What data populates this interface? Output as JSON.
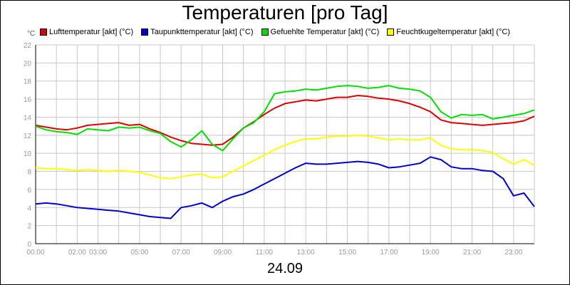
{
  "chart_data": {
    "type": "line",
    "title": "Temperaturen [pro Tag]",
    "xlabel": "24.09",
    "ylabel": "°C",
    "ylim": [
      0,
      22
    ],
    "xlim": [
      0,
      24
    ],
    "grid": true,
    "legend_position": "top",
    "yticks": [
      "0",
      "2",
      "4",
      "6",
      "8",
      "10",
      "12",
      "14",
      "16",
      "18",
      "20",
      "22"
    ],
    "xticks": [
      {
        "h": 0,
        "label": "00:00"
      },
      {
        "h": 2,
        "label": "02:00"
      },
      {
        "h": 3,
        "label": "03:00"
      },
      {
        "h": 5,
        "label": "05:00"
      },
      {
        "h": 7,
        "label": "07:00"
      },
      {
        "h": 9,
        "label": "09:00"
      },
      {
        "h": 11,
        "label": "11:00"
      },
      {
        "h": 13,
        "label": "13:00"
      },
      {
        "h": 15,
        "label": "15:00"
      },
      {
        "h": 17,
        "label": "17:00"
      },
      {
        "h": 19,
        "label": "19:00"
      },
      {
        "h": 21,
        "label": "21:00"
      },
      {
        "h": 23,
        "label": "23:00"
      }
    ],
    "x": [
      0,
      0.5,
      1,
      1.5,
      2,
      2.5,
      3,
      3.5,
      4,
      4.5,
      5,
      5.5,
      6,
      6.5,
      7,
      7.5,
      8,
      8.5,
      9,
      9.5,
      10,
      10.5,
      11,
      11.5,
      12,
      12.5,
      13,
      13.5,
      14,
      14.5,
      15,
      15.5,
      16,
      16.5,
      17,
      17.5,
      18,
      18.5,
      19,
      19.5,
      20,
      20.5,
      21,
      21.5,
      22,
      22.5,
      23,
      23.5,
      24
    ],
    "series": [
      {
        "name": "Lufttemperatur [akt] (°C)",
        "color": "#e00000",
        "values": [
          13.1,
          12.9,
          12.7,
          12.6,
          12.8,
          13.1,
          13.2,
          13.3,
          13.4,
          13.1,
          13.2,
          12.7,
          12.3,
          11.8,
          11.4,
          11.1,
          11.0,
          10.9,
          11.0,
          11.8,
          12.8,
          13.5,
          14.3,
          15.0,
          15.5,
          15.7,
          15.9,
          15.8,
          16.0,
          16.2,
          16.2,
          16.4,
          16.3,
          16.1,
          16.0,
          15.8,
          15.5,
          15.1,
          14.6,
          13.7,
          13.4,
          13.3,
          13.2,
          13.1,
          13.2,
          13.3,
          13.4,
          13.6,
          14.1
        ]
      },
      {
        "name": "Taupunkttemperatur [akt] (°C)",
        "color": "#0000d0",
        "values": [
          4.4,
          4.5,
          4.4,
          4.2,
          4.0,
          3.9,
          3.8,
          3.7,
          3.6,
          3.4,
          3.2,
          3.0,
          2.9,
          2.8,
          4.0,
          4.2,
          4.5,
          4.0,
          4.7,
          5.2,
          5.5,
          6.0,
          6.6,
          7.2,
          7.8,
          8.4,
          8.9,
          8.8,
          8.8,
          8.9,
          9.0,
          9.1,
          9.0,
          8.8,
          8.4,
          8.5,
          8.7,
          8.9,
          9.6,
          9.3,
          8.5,
          8.3,
          8.3,
          8.1,
          8.0,
          7.2,
          5.3,
          5.6,
          4.1
        ]
      },
      {
        "name": "Gefuehlte Temperatur [akt] (°C)",
        "color": "#00e000",
        "values": [
          13.0,
          12.6,
          12.4,
          12.3,
          12.1,
          12.7,
          12.6,
          12.5,
          12.9,
          12.8,
          12.9,
          12.5,
          12.2,
          11.3,
          10.7,
          11.5,
          12.5,
          11.0,
          10.3,
          11.6,
          12.8,
          13.4,
          14.6,
          16.6,
          16.8,
          16.9,
          17.1,
          17.0,
          17.2,
          17.4,
          17.5,
          17.4,
          17.2,
          17.3,
          17.5,
          17.2,
          17.1,
          16.9,
          16.2,
          14.6,
          13.9,
          14.3,
          14.2,
          14.3,
          13.8,
          14.0,
          14.2,
          14.4,
          14.8
        ]
      },
      {
        "name": "Feuchtkugeltemperatur [akt] (°C)",
        "color": "#ffff00",
        "values": [
          8.4,
          8.3,
          8.3,
          8.2,
          8.1,
          8.2,
          8.1,
          8.0,
          8.1,
          8.0,
          7.9,
          7.6,
          7.3,
          7.2,
          7.4,
          7.6,
          7.7,
          7.3,
          7.4,
          8.0,
          8.6,
          9.2,
          9.8,
          10.4,
          10.9,
          11.3,
          11.6,
          11.6,
          11.8,
          11.9,
          11.9,
          12.0,
          11.9,
          11.7,
          11.5,
          11.6,
          11.5,
          11.5,
          11.7,
          10.9,
          10.5,
          10.4,
          10.4,
          10.3,
          10.1,
          9.4,
          8.8,
          9.3,
          8.7
        ]
      }
    ]
  },
  "legend_items": [
    "Lufttemperatur [akt] (°C)",
    "Taupunkttemperatur [akt] (°C)",
    "Gefuehlte Temperatur [akt] (°C)",
    "Feuchtkugeltemperatur [akt] (°C)"
  ],
  "legend_colors": [
    "#e00000",
    "#0000d0",
    "#00e000",
    "#ffff00"
  ]
}
